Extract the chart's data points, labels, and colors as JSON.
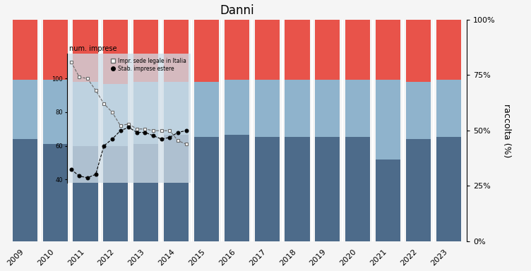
{
  "title": "Danni",
  "years": [
    2009,
    2010,
    2011,
    2012,
    2013,
    2014,
    2015,
    2016,
    2017,
    2018,
    2019,
    2020,
    2021,
    2022,
    2023
  ],
  "bar_bottom": [
    46,
    44,
    43,
    43,
    44,
    48,
    47,
    48,
    47,
    47,
    47,
    47,
    37,
    46,
    47
  ],
  "bar_mid": [
    27,
    29,
    29,
    28,
    28,
    24,
    25,
    25,
    26,
    26,
    26,
    26,
    36,
    26,
    26
  ],
  "bar_top": [
    27,
    27,
    28,
    29,
    28,
    28,
    28,
    27,
    27,
    27,
    27,
    27,
    27,
    28,
    27
  ],
  "color_bottom": "#4d6b8a",
  "color_mid": "#8fb3cc",
  "color_top": "#e8534a",
  "ylabel_right": "raccolta (%)",
  "yticks_right": [
    0,
    25,
    50,
    75,
    100
  ],
  "ytick_labels_right": [
    "0%",
    "25%",
    "50%",
    "75%",
    "100%"
  ],
  "inset_title": "num. imprese",
  "inset_legend1": "Impr. sede legale in Italia",
  "inset_legend2": "Stab. imprese estere",
  "italia_values_15": [
    110,
    101,
    100,
    93,
    85,
    80,
    72,
    73,
    70,
    70,
    69,
    69,
    69,
    63,
    61
  ],
  "estere_values_15": [
    46,
    42,
    41,
    43,
    60,
    64,
    69,
    71,
    68,
    68,
    66,
    64,
    65,
    68,
    69
  ],
  "fig_bg": "#f5f5f5"
}
